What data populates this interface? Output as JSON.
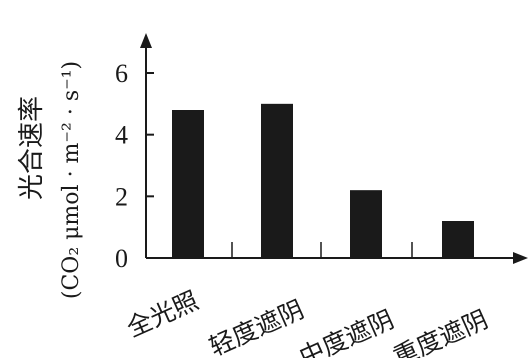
{
  "chart_data": {
    "type": "bar",
    "title": "",
    "xlabel": "",
    "ylabel": "光合速率",
    "ylabel_unit": "(CO₂ μmol · m⁻² · s⁻¹)",
    "categories": [
      "全光照",
      "轻度遮阴",
      "中度遮阴",
      "重度遮阴"
    ],
    "values": [
      4.8,
      5.0,
      2.2,
      1.2
    ],
    "ylim": [
      0,
      7
    ],
    "yticks": [
      "0",
      "2",
      "4",
      "6"
    ],
    "bar_color": "#1a1a1a",
    "grid": false,
    "legend": "none"
  }
}
